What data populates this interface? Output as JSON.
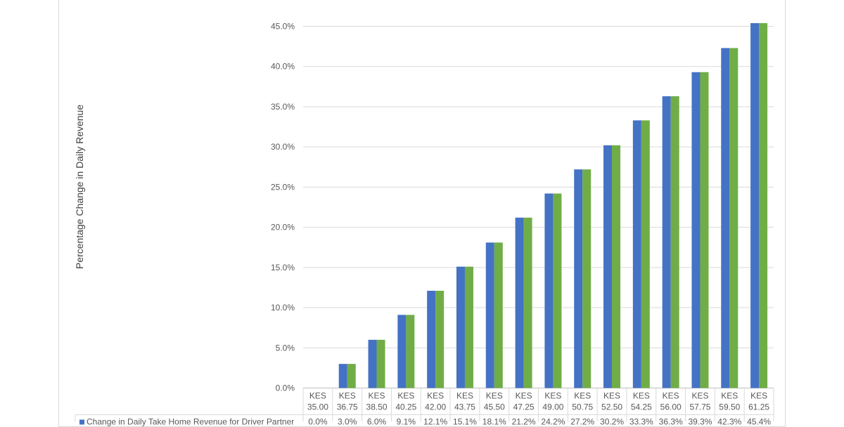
{
  "chart_data": {
    "type": "bar",
    "ylabel": "Percentage Change in Daily Revenue",
    "xlabel": "",
    "ylim": [
      0,
      45
    ],
    "yticks": [
      "0.0%",
      "5.0%",
      "10.0%",
      "15.0%",
      "20.0%",
      "25.0%",
      "30.0%",
      "35.0%",
      "40.0%",
      "45.0%"
    ],
    "grid": true,
    "categories": [
      [
        "KES",
        "35.00"
      ],
      [
        "KES",
        "36.75"
      ],
      [
        "KES",
        "38.50"
      ],
      [
        "KES",
        "40.25"
      ],
      [
        "KES",
        "42.00"
      ],
      [
        "KES",
        "43.75"
      ],
      [
        "KES",
        "45.50"
      ],
      [
        "KES",
        "47.25"
      ],
      [
        "KES",
        "49.00"
      ],
      [
        "KES",
        "50.75"
      ],
      [
        "KES",
        "52.50"
      ],
      [
        "KES",
        "54.25"
      ],
      [
        "KES",
        "56.00"
      ],
      [
        "KES",
        "57.75"
      ],
      [
        "KES",
        "59.50"
      ],
      [
        "KES",
        "61.25"
      ]
    ],
    "series": [
      {
        "name": "Change in Daily Take Home Revenue for Driver Partner",
        "color": "#4472c4",
        "values": [
          0.0,
          3.0,
          6.0,
          9.1,
          12.1,
          15.1,
          18.1,
          21.2,
          24.2,
          27.2,
          30.2,
          33.3,
          36.3,
          39.3,
          42.3,
          45.4
        ],
        "labels": [
          "0.0%",
          "3.0%",
          "6.0%",
          "9.1%",
          "12.1%",
          "15.1%",
          "18.1%",
          "21.2%",
          "24.2%",
          "27.2%",
          "30.2%",
          "33.3%",
          "36.3%",
          "39.3%",
          "42.3%",
          "45.4%"
        ]
      },
      {
        "name": "",
        "color": "#70ad47",
        "values": [
          0.0,
          3.0,
          6.0,
          9.1,
          12.1,
          15.1,
          18.1,
          21.2,
          24.2,
          27.2,
          30.2,
          33.3,
          36.3,
          39.3,
          42.3,
          45.4
        ]
      }
    ],
    "gridline_color": "#d9d9d9",
    "axis_color": "#bfbfbf"
  }
}
